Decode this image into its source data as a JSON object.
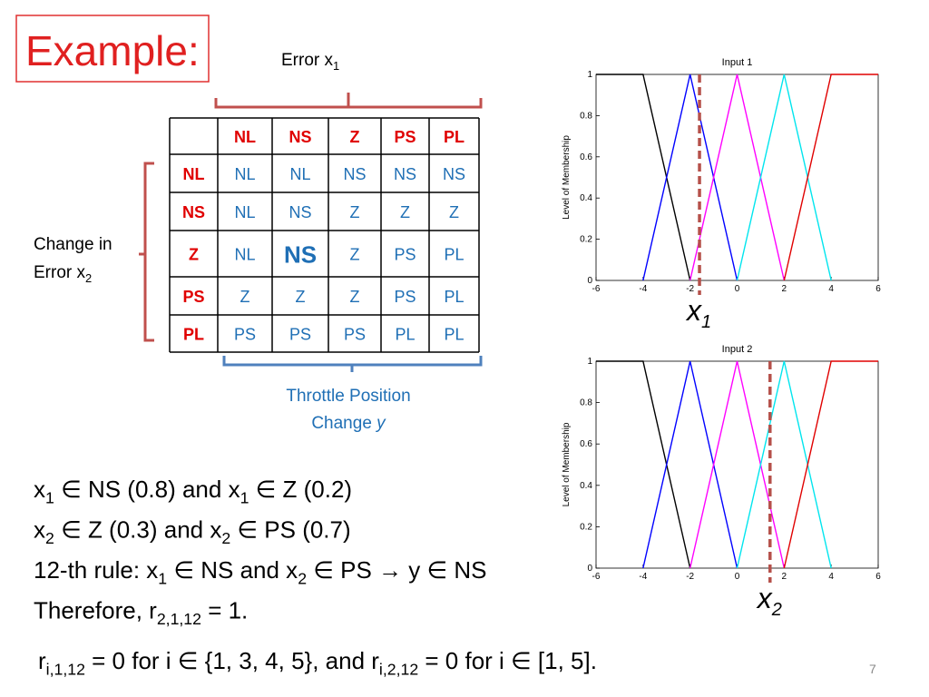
{
  "title": "Example:",
  "error_label": [
    {
      "text": "Error x"
    },
    {
      "sub": "1"
    }
  ],
  "change_label": [
    [
      {
        "text": "Change in"
      }
    ],
    [
      {
        "text": "Error x"
      },
      {
        "sub": "2"
      }
    ]
  ],
  "output_label": [
    [
      {
        "text": "Throttle Position"
      }
    ],
    [
      {
        "text": "Change "
      },
      {
        "italic": "y"
      }
    ]
  ],
  "table": {
    "header": [
      "NL",
      "NS",
      "Z",
      "PS",
      "PL"
    ],
    "rows": [
      {
        "label": "NL",
        "cells": [
          "NL",
          "NL",
          "NS",
          "NS",
          "NS"
        ]
      },
      {
        "label": "NS",
        "cells": [
          "NL",
          "NS",
          "Z",
          "Z",
          "Z"
        ]
      },
      {
        "label": "Z",
        "cells": [
          "NL",
          "NS",
          "Z",
          "PS",
          "PL"
        ]
      },
      {
        "label": "PS",
        "cells": [
          "Z",
          "Z",
          "Z",
          "PS",
          "PL"
        ]
      },
      {
        "label": "PL",
        "cells": [
          "PS",
          "PS",
          "PS",
          "PL",
          "PL"
        ]
      }
    ],
    "highlight": [
      2,
      1
    ]
  },
  "text_lines": [
    [
      {
        "text": "x"
      },
      {
        "sub": "1"
      },
      {
        "text": " ∈ NS (0.8) and x"
      },
      {
        "sub": "1"
      },
      {
        "text": " ∈ Z (0.2)"
      }
    ],
    [
      {
        "text": "x"
      },
      {
        "sub": "2"
      },
      {
        "text": " ∈ Z (0.3) and x"
      },
      {
        "sub": "2"
      },
      {
        "text": " ∈ PS (0.7)"
      }
    ],
    [
      {
        "text": "12-th rule: x"
      },
      {
        "sub": "1"
      },
      {
        "text": " ∈ NS and x"
      },
      {
        "sub": "2"
      },
      {
        "text": " ∈ PS → y ∈ NS"
      }
    ],
    [
      {
        "text": "Therefore, r"
      },
      {
        "sub": "2,1,12"
      },
      {
        "text": " = 1."
      }
    ]
  ],
  "final_line": [
    {
      "text": "r"
    },
    {
      "sub": "i,1,12"
    },
    {
      "text": " = 0 for i ∈ {1, 3, 4, 5}, and r"
    },
    {
      "sub": "i,2,12"
    },
    {
      "text": " = 0 for i ∈ [1, 5]."
    }
  ],
  "page_number": "7",
  "chart_data": [
    {
      "type": "line",
      "title": "Input 1",
      "y_label": "Level of Membership",
      "xlim": [
        -6,
        6
      ],
      "ylim": [
        0,
        1
      ],
      "xticks": [
        -6,
        -4,
        -2,
        0,
        2,
        4,
        6
      ],
      "yticks": [
        0,
        0.2,
        0.4,
        0.6,
        0.8,
        1
      ],
      "series": [
        {
          "color": "#000000",
          "x": [
            -6,
            -4,
            -2
          ],
          "values": [
            1,
            1,
            0
          ]
        },
        {
          "color": "#0000ff",
          "x": [
            -4,
            -2,
            0
          ],
          "values": [
            0,
            1,
            0
          ]
        },
        {
          "color": "#ff00ff",
          "x": [
            -2,
            0,
            2
          ],
          "values": [
            0,
            1,
            0
          ]
        },
        {
          "color": "#00e5ee",
          "x": [
            0,
            2,
            4
          ],
          "values": [
            0,
            1,
            0
          ]
        },
        {
          "color": "#e00000",
          "x": [
            2,
            4,
            6
          ],
          "values": [
            0,
            1,
            1
          ]
        }
      ],
      "marker": {
        "x": -1.6,
        "label": "x",
        "sub": "1",
        "color": "#b5504a"
      }
    },
    {
      "type": "line",
      "title": "Input 2",
      "y_label": "Level of Membership",
      "xlim": [
        -6,
        6
      ],
      "ylim": [
        0,
        1
      ],
      "xticks": [
        -6,
        -4,
        -2,
        0,
        2,
        4,
        6
      ],
      "yticks": [
        0,
        0.2,
        0.4,
        0.6,
        0.8,
        1
      ],
      "series": [
        {
          "color": "#000000",
          "x": [
            -6,
            -4,
            -2
          ],
          "values": [
            1,
            1,
            0
          ]
        },
        {
          "color": "#0000ff",
          "x": [
            -4,
            -2,
            0
          ],
          "values": [
            0,
            1,
            0
          ]
        },
        {
          "color": "#ff00ff",
          "x": [
            -2,
            0,
            2
          ],
          "values": [
            0,
            1,
            0
          ]
        },
        {
          "color": "#00e5ee",
          "x": [
            0,
            2,
            4
          ],
          "values": [
            0,
            1,
            0
          ]
        },
        {
          "color": "#e00000",
          "x": [
            2,
            4,
            6
          ],
          "values": [
            0,
            1,
            1
          ]
        }
      ],
      "marker": {
        "x": 1.4,
        "label": "x",
        "sub": "2",
        "color": "#b5504a"
      }
    }
  ]
}
